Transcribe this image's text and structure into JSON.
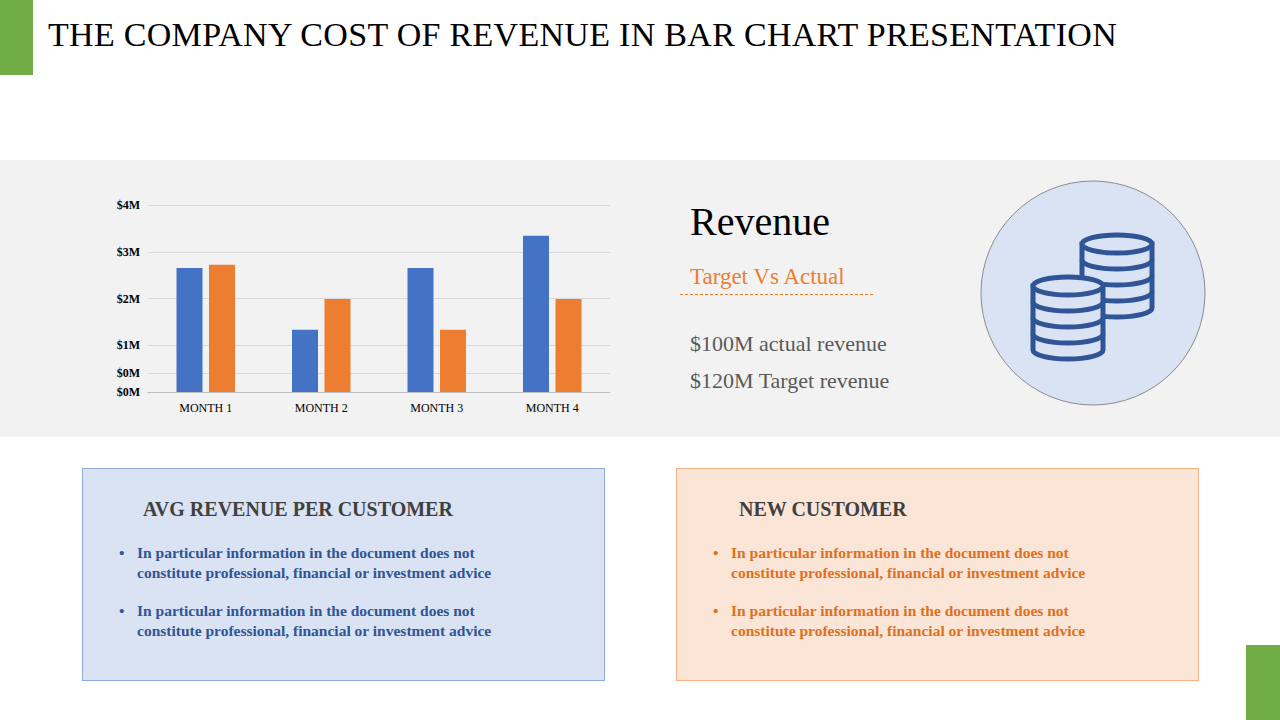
{
  "title": "THE COMPANY COST OF REVENUE IN BAR CHART PRESENTATION",
  "chart_data": {
    "type": "bar",
    "categories": [
      "MONTH 1",
      "MONTH 2",
      "MONTH 3",
      "MONTH 4"
    ],
    "series": [
      {
        "color": "#4472c4",
        "values": [
          2.65,
          1.33,
          2.65,
          3.34
        ]
      },
      {
        "color": "#ed7d31",
        "values": [
          2.72,
          1.99,
          1.33,
          1.99
        ]
      }
    ],
    "ylim": [
      0,
      4
    ],
    "yticks": [
      {
        "value": 0,
        "label": "$0M"
      },
      {
        "value": 0.4,
        "label": "$0M"
      },
      {
        "value": 1,
        "label": "$1M"
      },
      {
        "value": 2,
        "label": "$2M"
      },
      {
        "value": 3,
        "label": "$3M"
      },
      {
        "value": 4,
        "label": "$4M"
      }
    ],
    "grid": true
  },
  "summary": {
    "heading": "Revenue",
    "subheading": "Target Vs Actual",
    "lines": [
      "$100M actual revenue",
      "$120M Target revenue"
    ]
  },
  "boxes": [
    {
      "heading": "AVG REVENUE PER CUSTOMER",
      "bullets": [
        "In particular information in the document does not constitute professional, financial or investment advice",
        "In particular information in the document does not constitute professional, financial or investment advice"
      ]
    },
    {
      "heading": "NEW CUSTOMER",
      "bullets": [
        "In particular information in the document does not constitute professional, financial or investment advice",
        "In particular information in the document does not constitute professional, financial or investment advice"
      ]
    }
  ]
}
